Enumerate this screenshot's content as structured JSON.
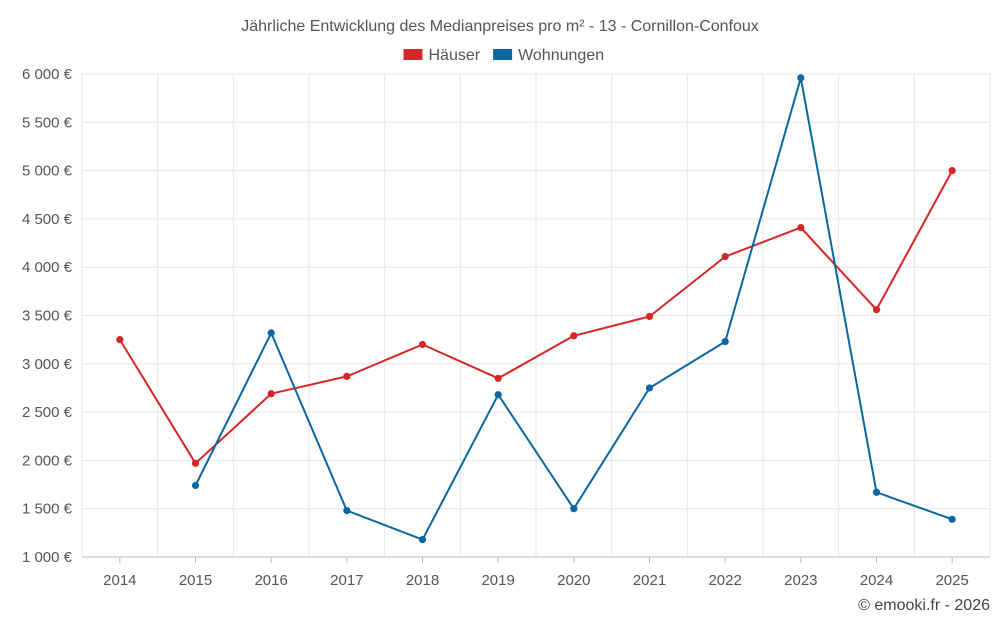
{
  "chart_data": {
    "type": "line",
    "title": "Jährliche Entwicklung des Medianpreises pro m² - 13 - Cornillon-Confoux",
    "categories": [
      "2014",
      "2015",
      "2016",
      "2017",
      "2018",
      "2019",
      "2020",
      "2021",
      "2022",
      "2023",
      "2024",
      "2025"
    ],
    "series": [
      {
        "name": "Häuser",
        "color": "#d62728",
        "values": [
          3250,
          1970,
          2690,
          2870,
          3200,
          2850,
          3290,
          3490,
          4110,
          4410,
          3560,
          5000
        ]
      },
      {
        "name": "Wohnungen",
        "color": "#0b67a0",
        "values": [
          null,
          1740,
          3320,
          1480,
          1180,
          2680,
          1500,
          2750,
          3230,
          5960,
          1670,
          1390
        ]
      }
    ],
    "y_ticks": [
      1000,
      1500,
      2000,
      2500,
      3000,
      3500,
      4000,
      4500,
      5000,
      5500,
      6000
    ],
    "y_tick_labels": [
      "1 000 €",
      "1 500 €",
      "2 000 €",
      "2 500 €",
      "3 000 €",
      "3 500 €",
      "4 000 €",
      "4 500 €",
      "5 000 €",
      "5 500 €",
      "6 000 €"
    ],
    "ylim": [
      1000,
      6000
    ],
    "xlabel": "",
    "ylabel": "",
    "grid": true,
    "legend_position": "top-center"
  },
  "credit": "© emooki.fr - 2026"
}
